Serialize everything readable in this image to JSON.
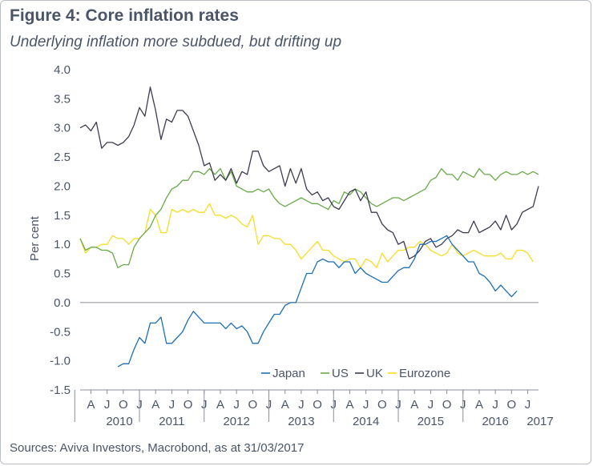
{
  "header": {
    "title": "Figure 4: Core inflation rates",
    "subtitle": "Underlying inflation more subdued, but drifting up"
  },
  "footer": {
    "source": "Sources: Aviva Investors, Macrobond, as at 31/03/2017"
  },
  "chart_data": {
    "type": "line",
    "title": "Figure 4: Core inflation rates",
    "subtitle": "Underlying inflation more subdued, but drifting up",
    "ylabel": "Per cent",
    "xlabel": "",
    "ylim": [
      -1.5,
      4.0
    ],
    "yticks": [
      "4.0",
      "3.5",
      "3.0",
      "2.5",
      "2.0",
      "1.5",
      "1.0",
      "0.5",
      "0.0",
      "-0.5",
      "-1.0",
      "-1.5"
    ],
    "x_start": "2010-02",
    "x_end": "2017-03",
    "x_month_ticks": [
      "A",
      "J",
      "O",
      "J",
      "A",
      "J",
      "O",
      "J",
      "A",
      "J",
      "O",
      "J",
      "A",
      "J",
      "O",
      "J",
      "A",
      "J",
      "O",
      "J",
      "A",
      "J",
      "O",
      "J",
      "A",
      "J",
      "O",
      "J"
    ],
    "x_year_labels": [
      "2010",
      "2011",
      "2012",
      "2013",
      "2014",
      "2015",
      "2016",
      "2017"
    ],
    "legend_position": "bottom-right",
    "grid": false,
    "series": [
      {
        "name": "Japan",
        "color": "#1f6fb5",
        "start": "2010-09",
        "values": [
          -1.1,
          -1.05,
          -1.05,
          -0.8,
          -0.6,
          -0.7,
          -0.35,
          -0.35,
          -0.25,
          -0.7,
          -0.7,
          -0.6,
          -0.5,
          -0.3,
          -0.15,
          -0.25,
          -0.35,
          -0.35,
          -0.35,
          -0.35,
          -0.45,
          -0.35,
          -0.45,
          -0.4,
          -0.5,
          -0.7,
          -0.7,
          -0.5,
          -0.35,
          -0.2,
          -0.2,
          -0.05,
          0.0,
          0.0,
          0.25,
          0.5,
          0.5,
          0.7,
          0.75,
          0.7,
          0.7,
          0.6,
          0.7,
          0.7,
          0.5,
          0.6,
          0.5,
          0.45,
          0.4,
          0.35,
          0.35,
          0.45,
          0.55,
          0.6,
          0.6,
          0.75,
          1.0,
          1.0,
          1.05,
          1.05,
          1.1,
          1.15,
          1.0,
          0.9,
          0.8,
          0.7,
          0.7,
          0.5,
          0.45,
          0.35,
          0.2,
          0.3,
          0.2,
          0.1,
          0.2
        ]
      },
      {
        "name": "US",
        "color": "#6aaa4a",
        "start": "2010-02",
        "values": [
          1.1,
          0.9,
          0.95,
          0.95,
          0.9,
          0.9,
          0.85,
          0.6,
          0.65,
          0.65,
          0.95,
          1.1,
          1.2,
          1.3,
          1.5,
          1.6,
          1.8,
          1.95,
          2.0,
          2.1,
          2.1,
          2.25,
          2.25,
          2.2,
          2.3,
          2.2,
          2.3,
          2.1,
          2.25,
          2.0,
          1.95,
          1.9,
          1.9,
          1.95,
          1.9,
          1.95,
          1.8,
          1.7,
          1.65,
          1.7,
          1.75,
          1.8,
          1.75,
          1.7,
          1.7,
          1.65,
          1.6,
          1.75,
          1.7,
          1.9,
          1.85,
          1.95,
          1.9,
          1.8,
          1.7,
          1.65,
          1.7,
          1.75,
          1.8,
          1.8,
          1.75,
          1.8,
          1.85,
          1.9,
          1.95,
          2.1,
          2.15,
          2.3,
          2.2,
          2.2,
          2.1,
          2.25,
          2.2,
          2.15,
          2.3,
          2.2,
          2.2,
          2.1,
          2.2,
          2.25,
          2.2,
          2.2,
          2.25,
          2.2,
          2.25,
          2.2
        ]
      },
      {
        "name": "UK",
        "color": "#3d3c52",
        "start": "2010-02",
        "values": [
          3.0,
          3.05,
          2.95,
          3.1,
          2.65,
          2.75,
          2.75,
          2.7,
          2.75,
          2.85,
          3.05,
          3.35,
          3.2,
          3.7,
          3.3,
          2.8,
          3.15,
          3.1,
          3.3,
          3.3,
          3.2,
          2.95,
          2.7,
          2.35,
          2.4,
          2.1,
          2.2,
          2.1,
          2.3,
          2.05,
          2.25,
          2.2,
          2.6,
          2.6,
          2.35,
          2.25,
          2.3,
          2.35,
          2.0,
          2.3,
          2.05,
          2.3,
          1.95,
          1.85,
          1.9,
          1.75,
          1.8,
          1.65,
          1.6,
          1.75,
          1.9,
          1.95,
          1.75,
          1.9,
          1.55,
          1.55,
          1.35,
          1.25,
          1.2,
          1.0,
          1.05,
          0.75,
          0.8,
          0.9,
          1.05,
          1.1,
          0.95,
          1.0,
          1.1,
          1.15,
          1.25,
          1.2,
          1.2,
          1.4,
          1.2,
          1.25,
          1.3,
          1.4,
          1.25,
          1.5,
          1.25,
          1.35,
          1.55,
          1.6,
          1.65,
          2.0
        ]
      },
      {
        "name": "Eurozone",
        "color": "#f5dd28",
        "start": "2010-02",
        "values": [
          1.1,
          0.85,
          0.95,
          0.95,
          1.0,
          1.0,
          1.15,
          1.1,
          1.1,
          1.0,
          1.1,
          1.1,
          1.2,
          1.6,
          1.5,
          1.2,
          1.2,
          1.6,
          1.55,
          1.6,
          1.55,
          1.6,
          1.55,
          1.55,
          1.7,
          1.5,
          1.5,
          1.45,
          1.5,
          1.45,
          1.35,
          1.3,
          1.5,
          1.0,
          1.15,
          1.15,
          1.1,
          1.1,
          1.0,
          1.0,
          0.9,
          0.75,
          0.85,
          0.95,
          1.05,
          0.9,
          0.9,
          0.8,
          0.75,
          0.7,
          0.75,
          0.75,
          0.6,
          0.75,
          0.7,
          0.6,
          0.85,
          0.7,
          0.8,
          0.9,
          0.9,
          0.95,
          0.95,
          1.05,
          1.0,
          0.9,
          0.85,
          0.8,
          0.85,
          1.0,
          0.85,
          0.8,
          0.85,
          0.9,
          0.85,
          0.8,
          0.8,
          0.8,
          0.85,
          0.75,
          0.75,
          0.9,
          0.9,
          0.85,
          0.7
        ]
      }
    ]
  }
}
